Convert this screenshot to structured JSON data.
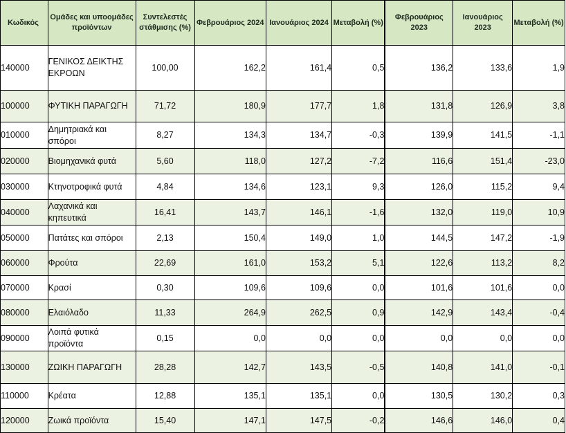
{
  "header": {
    "code": "Κωδικός",
    "groups": "Ομάδες και υποομάδες προϊόντων",
    "weight": "Συντελεστές στάθμισης (%)",
    "feb2024": "Φεβρουάριος 2024",
    "jan2024": "Ιανουάριος 2024",
    "change2024": "Μεταβολή (%)",
    "feb2023": "Φεβρουάριος 2023",
    "jan2023": "Ιανουάριος 2023",
    "change2023": "Μεταβολή (%)"
  },
  "rows": [
    {
      "code": "140000",
      "name": "ΓΕΝΙΚΟΣ ΔΕΙΚΤΗΣ ΕΚΡΟΩΝ",
      "weight": "100,00",
      "feb2024": "162,2",
      "jan2024": "161,4",
      "change2024": "0,5",
      "feb2023": "136,2",
      "jan2023": "133,6",
      "change2023": "1,9"
    },
    {
      "code": "100000",
      "name": "ΦΥΤΙΚΗ ΠΑΡΑΓΩΓΗ",
      "weight": "71,72",
      "feb2024": "180,9",
      "jan2024": "177,7",
      "change2024": "1,8",
      "feb2023": "131,8",
      "jan2023": "126,9",
      "change2023": "3,8"
    },
    {
      "code": "010000",
      "name": "Δημητριακά και σπόροι",
      "weight": "8,27",
      "feb2024": "134,3",
      "jan2024": "134,7",
      "change2024": "-0,3",
      "feb2023": "139,9",
      "jan2023": "141,5",
      "change2023": "-1,1"
    },
    {
      "code": "020000",
      "name": "Βιομηχανικά φυτά",
      "weight": "5,60",
      "feb2024": "118,0",
      "jan2024": "127,2",
      "change2024": "-7,2",
      "feb2023": "116,6",
      "jan2023": "151,4",
      "change2023": "-23,0"
    },
    {
      "code": "030000",
      "name": "Κτηνοτροφικά φυτά",
      "weight": "4,84",
      "feb2024": "134,6",
      "jan2024": "123,1",
      "change2024": "9,3",
      "feb2023": "126,0",
      "jan2023": "115,2",
      "change2023": "9,4"
    },
    {
      "code": "040000",
      "name": "Λαχανικά και κηπευτικά",
      "weight": "16,41",
      "feb2024": "143,7",
      "jan2024": "146,1",
      "change2024": "-1,6",
      "feb2023": "132,0",
      "jan2023": "119,0",
      "change2023": "10,9"
    },
    {
      "code": "050000",
      "name": "Πατάτες και σπόροι",
      "weight": "2,13",
      "feb2024": "150,4",
      "jan2024": "149,0",
      "change2024": "1,0",
      "feb2023": "144,5",
      "jan2023": "147,2",
      "change2023": "-1,9"
    },
    {
      "code": "060000",
      "name": "Φρούτα",
      "weight": "22,69",
      "feb2024": "161,0",
      "jan2024": "153,2",
      "change2024": "5,1",
      "feb2023": "122,6",
      "jan2023": "113,2",
      "change2023": "8,2"
    },
    {
      "code": "070000",
      "name": "Κρασί",
      "weight": "0,30",
      "feb2024": "109,6",
      "jan2024": "109,6",
      "change2024": "0,0",
      "feb2023": "101,6",
      "jan2023": "101,6",
      "change2023": "0,0"
    },
    {
      "code": "080000",
      "name": "Ελαιόλαδο",
      "weight": "11,33",
      "feb2024": "264,9",
      "jan2024": "262,5",
      "change2024": "0,9",
      "feb2023": "142,9",
      "jan2023": "143,4",
      "change2023": "-0,4"
    },
    {
      "code": "090000",
      "name": "Λοιπά φυτικά προϊόντα",
      "weight": "0,15",
      "feb2024": "0,0",
      "jan2024": "0,0",
      "change2024": "0,0",
      "feb2023": "0,0",
      "jan2023": "0,0",
      "change2023": "0,0"
    },
    {
      "code": "130000",
      "name": "ΖΩΙΚΗ ΠΑΡΑΓΩΓΗ",
      "weight": "28,28",
      "feb2024": "142,7",
      "jan2024": "143,5",
      "change2024": "-0,5",
      "feb2023": "140,8",
      "jan2023": "141,0",
      "change2023": "-0,1"
    },
    {
      "code": "110000",
      "name": "Κρέατα",
      "weight": "12,88",
      "feb2024": "135,1",
      "jan2024": "135,1",
      "change2024": "0,0",
      "feb2023": "130,5",
      "jan2023": "130,2",
      "change2023": "0,3"
    },
    {
      "code": "120000",
      "name": "Ζωικά προϊόντα",
      "weight": "15,40",
      "feb2024": "147,1",
      "jan2024": "147,5",
      "change2024": "-0,2",
      "feb2023": "146,6",
      "jan2023": "146,0",
      "change2023": "0,4"
    }
  ]
}
